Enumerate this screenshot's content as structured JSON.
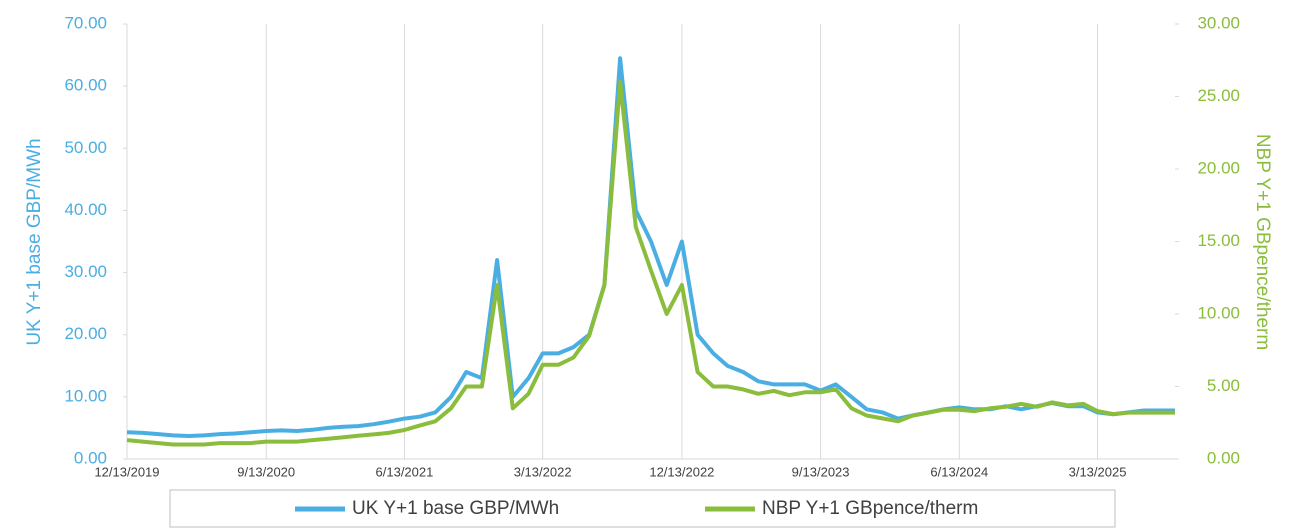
{
  "chart_data": {
    "type": "line",
    "x": [
      "12/13/2019",
      "1/13/2020",
      "2/13/2020",
      "3/13/2020",
      "4/13/2020",
      "5/13/2020",
      "6/13/2020",
      "7/13/2020",
      "8/13/2020",
      "9/13/2020",
      "10/13/2020",
      "11/13/2020",
      "12/13/2020",
      "1/13/2021",
      "2/13/2021",
      "3/13/2021",
      "4/13/2021",
      "5/13/2021",
      "6/13/2021",
      "7/13/2021",
      "8/13/2021",
      "9/13/2021",
      "10/13/2021",
      "11/13/2021",
      "12/13/2021",
      "1/13/2022",
      "2/13/2022",
      "3/13/2022",
      "4/13/2022",
      "5/13/2022",
      "6/13/2022",
      "7/13/2022",
      "8/13/2022",
      "9/13/2022",
      "10/13/2022",
      "11/13/2022",
      "12/13/2022",
      "1/13/2023",
      "2/13/2023",
      "3/13/2023",
      "4/13/2023",
      "5/13/2023",
      "6/13/2023",
      "7/13/2023",
      "8/13/2023",
      "9/13/2023",
      "10/13/2023",
      "11/13/2023",
      "12/13/2023",
      "1/13/2024",
      "2/13/2024",
      "3/13/2024",
      "4/13/2024",
      "5/13/2024",
      "6/13/2024",
      "7/13/2024",
      "8/13/2024",
      "9/13/2024",
      "10/13/2024",
      "11/13/2024",
      "12/13/2024",
      "1/13/2025",
      "2/13/2025",
      "3/13/2025",
      "4/13/2025",
      "5/13/2025",
      "6/13/2025",
      "7/13/2025",
      "8/13/2025"
    ],
    "xlim": [
      "12/13/2019",
      "8/13/2025"
    ],
    "xticks": [
      "12/13/2019",
      "9/13/2020",
      "6/13/2021",
      "3/13/2022",
      "12/13/2022",
      "9/13/2023",
      "6/13/2024",
      "3/13/2025"
    ],
    "ylabel": "UK Y+1 base GBP/MWh",
    "y2label": "NBP Y+1 GBpence/therm",
    "ylim": [
      0,
      70
    ],
    "yticks": [
      {
        "value": 0,
        "label": "0.00"
      },
      {
        "value": 10,
        "label": "10.00"
      },
      {
        "value": 20,
        "label": "20.00"
      },
      {
        "value": 30,
        "label": "30.00"
      },
      {
        "value": 40,
        "label": "40.00"
      },
      {
        "value": 50,
        "label": "50.00"
      },
      {
        "value": 60,
        "label": "60.00"
      },
      {
        "value": 70,
        "label": "70.00"
      }
    ],
    "y2lim": [
      0,
      30
    ],
    "y2ticks": [
      {
        "value": 0,
        "label": "0.00"
      },
      {
        "value": 5,
        "label": "5.00"
      },
      {
        "value": 10,
        "label": "10.00"
      },
      {
        "value": 15,
        "label": "15.00"
      },
      {
        "value": 20,
        "label": "20.00"
      },
      {
        "value": 25,
        "label": "25.00"
      },
      {
        "value": 30,
        "label": "30.00"
      }
    ],
    "grid": true,
    "legend": "bottom",
    "series": [
      {
        "name": "UK Y+1 base GBP/MWh",
        "color": "#4aaee3",
        "values": [
          4.3,
          4.2,
          4.0,
          3.8,
          3.7,
          3.8,
          4.0,
          4.1,
          4.3,
          4.5,
          4.6,
          4.5,
          4.7,
          5.0,
          5.2,
          5.3,
          5.6,
          6.0,
          6.5,
          6.8,
          7.5,
          10.0,
          14.0,
          13.0,
          32.0,
          10.0,
          13.0,
          17.0,
          17.0,
          18.0,
          20.0,
          28.0,
          64.5,
          40.0,
          35.0,
          28.0,
          35.0,
          20.0,
          17.0,
          15.0,
          14.0,
          12.5,
          12.0,
          12.0,
          12.0,
          11.0,
          12.0,
          10.0,
          8.0,
          7.5,
          6.5,
          7.0,
          7.5,
          8.0,
          8.3,
          8.0,
          8.0,
          8.5,
          8.0,
          8.5,
          9.0,
          8.5,
          8.5,
          7.5,
          7.2,
          7.5,
          7.8,
          7.8,
          7.8
        ]
      },
      {
        "name": "NBP Y+1 GBpence/therm",
        "color": "#8bbd3c",
        "axis": "y2",
        "values": [
          1.3,
          1.2,
          1.1,
          1.0,
          1.0,
          1.0,
          1.1,
          1.1,
          1.1,
          1.2,
          1.2,
          1.2,
          1.3,
          1.4,
          1.5,
          1.6,
          1.7,
          1.8,
          2.0,
          2.3,
          2.6,
          3.5,
          5.0,
          5.0,
          12.0,
          3.5,
          4.5,
          6.5,
          6.5,
          7.0,
          8.5,
          12.0,
          26.0,
          16.0,
          13.0,
          10.0,
          12.0,
          6.0,
          5.0,
          5.0,
          4.8,
          4.5,
          4.7,
          4.4,
          4.6,
          4.6,
          4.8,
          3.5,
          3.0,
          2.8,
          2.6,
          3.0,
          3.2,
          3.4,
          3.4,
          3.3,
          3.5,
          3.6,
          3.8,
          3.6,
          3.9,
          3.7,
          3.8,
          3.3,
          3.1,
          3.2,
          3.2,
          3.2,
          3.2
        ]
      }
    ]
  }
}
